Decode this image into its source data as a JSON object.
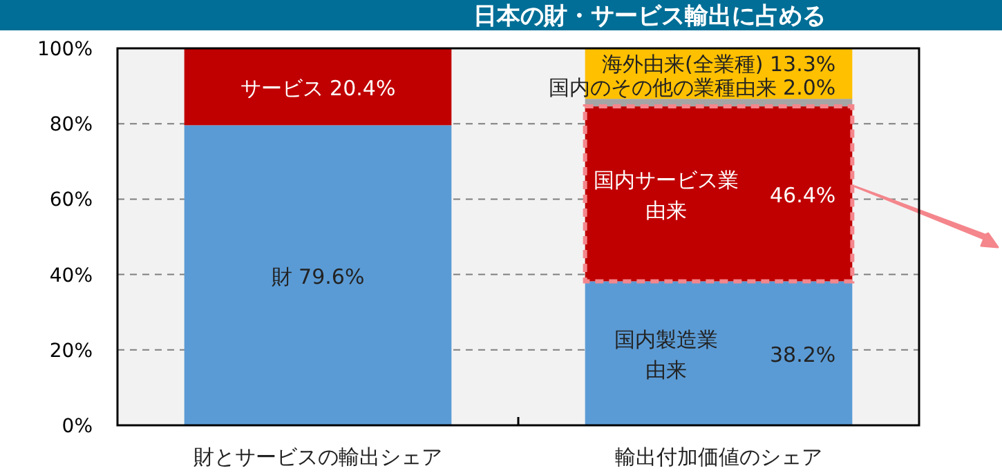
{
  "chart_data": {
    "type": "bar",
    "stacked": true,
    "title": "日本の財・サービス輸出に占める",
    "categories": [
      "財とサービスの輸出シェア",
      "輸出付加価値のシェア"
    ],
    "series": [
      {
        "color": "#5b9bd5",
        "values": [
          79.6,
          38.2
        ],
        "value_labels": [
          "財 79.6%",
          "国内製造業由来 38.2%"
        ]
      },
      {
        "color": "#c00000",
        "values": [
          20.4,
          46.4
        ],
        "value_labels": [
          "サービス 20.4%",
          "国内サービス業由来 46.4%"
        ]
      },
      {
        "color": "#a5a5a5",
        "values": [
          null,
          2.0
        ],
        "value_labels": [
          null,
          "国内のその他の業種由来 2.0%"
        ]
      },
      {
        "color": "#ffc000",
        "values": [
          null,
          13.3
        ],
        "value_labels": [
          null,
          "海外由来(全業種) 13.3%"
        ]
      }
    ],
    "ylim": [
      0,
      100
    ],
    "yticks": [
      {
        "value": 0,
        "label": "0%"
      },
      {
        "value": 20,
        "label": "20%"
      },
      {
        "value": 40,
        "label": "40%"
      },
      {
        "value": 60,
        "label": "60%"
      },
      {
        "value": 80,
        "label": "80%"
      },
      {
        "value": 100,
        "label": "100%"
      }
    ],
    "grid": "y"
  }
}
